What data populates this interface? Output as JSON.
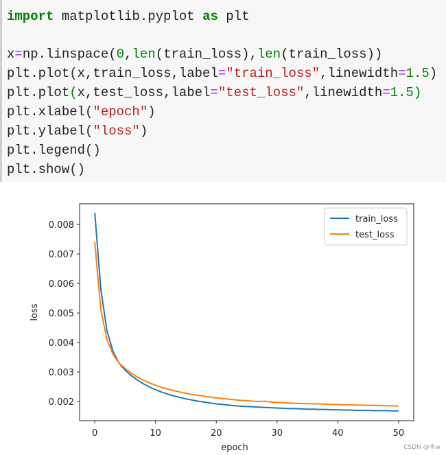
{
  "code": {
    "lines": [
      [
        {
          "text": "import",
          "kind": "keyword"
        },
        {
          "text": " matplotlib.pyplot ",
          "kind": "plain"
        },
        {
          "text": "as",
          "kind": "keyword"
        },
        {
          "text": " plt",
          "kind": "plain"
        }
      ],
      [
        {
          "text": "x",
          "kind": "plain"
        },
        {
          "text": "=",
          "kind": "operator"
        },
        {
          "text": "np.linspace(",
          "kind": "plain"
        },
        {
          "text": "0",
          "kind": "number"
        },
        {
          "text": ",",
          "kind": "plain"
        },
        {
          "text": "len",
          "kind": "builtin"
        },
        {
          "text": "(train_loss),",
          "kind": "plain"
        },
        {
          "text": "len",
          "kind": "builtin"
        },
        {
          "text": "(train_loss))",
          "kind": "plain"
        }
      ],
      [
        {
          "text": "plt.plot(x,train_loss,label",
          "kind": "plain"
        },
        {
          "text": "=",
          "kind": "operator"
        },
        {
          "text": "\"train_loss\"",
          "kind": "string"
        },
        {
          "text": ",linewidth",
          "kind": "plain"
        },
        {
          "text": "=",
          "kind": "operator"
        },
        {
          "text": "1.5",
          "kind": "number"
        },
        {
          "text": ")",
          "kind": "plain"
        }
      ],
      [
        {
          "text": "plt.plot",
          "kind": "plain"
        },
        {
          "text": "(",
          "kind": "builtin"
        },
        {
          "text": "x,test_loss,label",
          "kind": "plain"
        },
        {
          "text": "=",
          "kind": "operator"
        },
        {
          "text": "\"test_loss\"",
          "kind": "string"
        },
        {
          "text": ",linewidth",
          "kind": "plain"
        },
        {
          "text": "=",
          "kind": "operator"
        },
        {
          "text": "1.5",
          "kind": "number"
        },
        {
          "text": ")",
          "kind": "builtin"
        }
      ],
      [
        {
          "text": "plt.xlabel(",
          "kind": "plain"
        },
        {
          "text": "\"epoch\"",
          "kind": "string"
        },
        {
          "text": ")",
          "kind": "plain"
        }
      ],
      [
        {
          "text": "plt.ylabel(",
          "kind": "plain"
        },
        {
          "text": "\"loss\"",
          "kind": "string"
        },
        {
          "text": ")",
          "kind": "plain"
        }
      ],
      [
        {
          "text": "plt.legend()",
          "kind": "plain"
        }
      ],
      [
        {
          "text": "plt.show()",
          "kind": "plain"
        }
      ]
    ]
  },
  "chart_data": {
    "type": "line",
    "x_label": "epoch",
    "y_label": "loss",
    "x": [
      0,
      1,
      2,
      3,
      4,
      5,
      6,
      7,
      8,
      9,
      10,
      11,
      12,
      13,
      14,
      15,
      16,
      17,
      18,
      19,
      20,
      21,
      22,
      23,
      24,
      25,
      26,
      27,
      28,
      29,
      30,
      31,
      32,
      33,
      34,
      35,
      36,
      37,
      38,
      39,
      40,
      41,
      42,
      43,
      44,
      45,
      46,
      47,
      48,
      49,
      50
    ],
    "series": [
      {
        "name": "train_loss",
        "color": "#1f77b4",
        "values": [
          0.0084,
          0.0058,
          0.0044,
          0.0037,
          0.0033,
          0.00306,
          0.00288,
          0.00273,
          0.0026,
          0.00249,
          0.0024,
          0.00232,
          0.00225,
          0.00219,
          0.00214,
          0.00209,
          0.00205,
          0.00201,
          0.00198,
          0.00195,
          0.00192,
          0.0019,
          0.00188,
          0.00186,
          0.00184,
          0.00183,
          0.00182,
          0.00181,
          0.0018,
          0.00179,
          0.00178,
          0.00177,
          0.00176,
          0.00176,
          0.00175,
          0.00174,
          0.00174,
          0.00173,
          0.00173,
          0.00172,
          0.00172,
          0.00171,
          0.00171,
          0.0017,
          0.0017,
          0.0017,
          0.00169,
          0.00169,
          0.00169,
          0.00168,
          0.00168
        ]
      },
      {
        "name": "test_loss",
        "color": "#ff7f0e",
        "values": [
          0.0074,
          0.0051,
          0.0041,
          0.0036,
          0.0033,
          0.00312,
          0.00296,
          0.00283,
          0.00272,
          0.00263,
          0.00255,
          0.00248,
          0.00242,
          0.00237,
          0.00232,
          0.00228,
          0.00224,
          0.00221,
          0.00218,
          0.00215,
          0.00212,
          0.0021,
          0.00208,
          0.00206,
          0.00204,
          0.00203,
          0.00201,
          0.002,
          0.00201,
          0.00198,
          0.00197,
          0.00196,
          0.00195,
          0.00194,
          0.00193,
          0.00193,
          0.00192,
          0.00192,
          0.00191,
          0.0019,
          0.0019,
          0.00189,
          0.00189,
          0.00188,
          0.00188,
          0.00187,
          0.00187,
          0.00186,
          0.00186,
          0.00185,
          0.00185
        ]
      }
    ],
    "xlim": [
      -2.5,
      52.5
    ],
    "ylim": [
      0.00135,
      0.0087
    ],
    "xticks": [
      0,
      10,
      20,
      30,
      40,
      50
    ],
    "yticks": [
      0.002,
      0.003,
      0.004,
      0.005,
      0.006,
      0.007,
      0.008
    ],
    "legend": "upper right"
  },
  "watermark": "CSDN @水w"
}
